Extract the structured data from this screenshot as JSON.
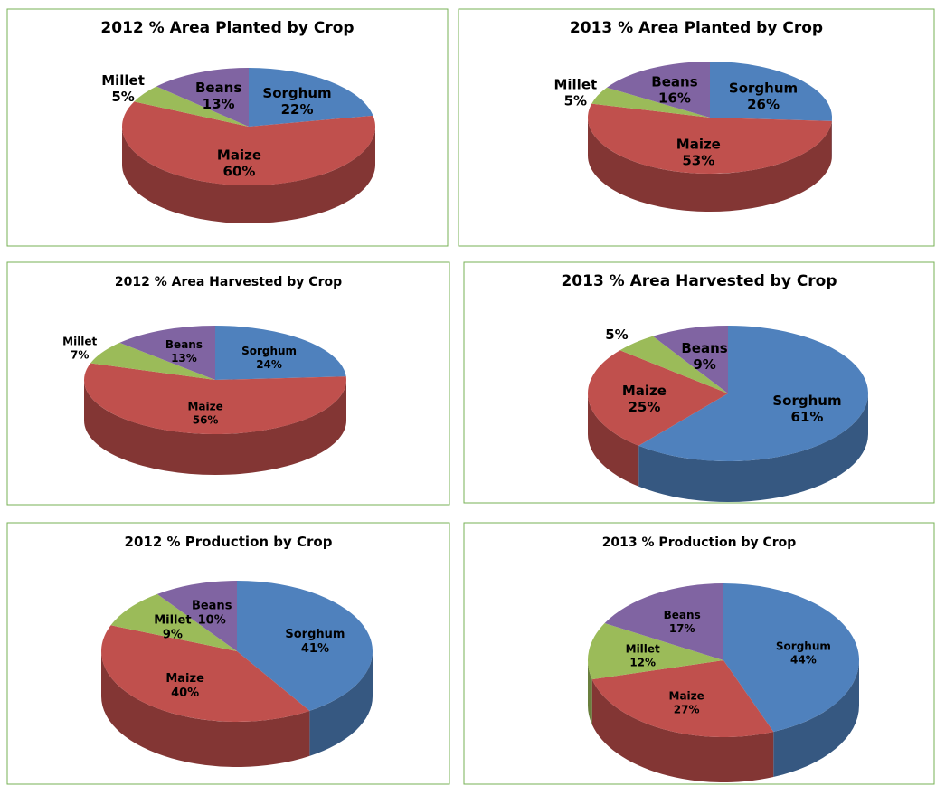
{
  "chart_data": [
    {
      "type": "pie",
      "title": "2012 % Area Planted by Crop",
      "categories": [
        "Sorghum",
        "Maize",
        "Millet",
        "Beans"
      ],
      "values": [
        22,
        60,
        5,
        13
      ],
      "value_labels": [
        "22%",
        "60%",
        "5%",
        "13%"
      ],
      "colors": [
        "#4f81bd",
        "#c0504d",
        "#9bbb59",
        "#8064a2"
      ]
    },
    {
      "type": "pie",
      "title": "2013  % Area Planted  by Crop",
      "categories": [
        "Sorghum",
        "Maize",
        "Millet",
        "Beans"
      ],
      "values": [
        26,
        53,
        5,
        16
      ],
      "value_labels": [
        "26%",
        "53%",
        "5%",
        "16%"
      ],
      "colors": [
        "#4f81bd",
        "#c0504d",
        "#9bbb59",
        "#8064a2"
      ]
    },
    {
      "type": "pie",
      "title": "2012 % Area Harvested by Crop",
      "categories": [
        "Sorghum",
        "Maize",
        "Millet",
        "Beans"
      ],
      "values": [
        24,
        56,
        7,
        13
      ],
      "value_labels": [
        "24%",
        "56%",
        "7%",
        "13%"
      ],
      "colors": [
        "#4f81bd",
        "#c0504d",
        "#9bbb59",
        "#8064a2"
      ]
    },
    {
      "type": "pie",
      "title": "2013  % Area Harvested by Crop",
      "categories": [
        "Sorghum",
        "Maize",
        null,
        "Beans"
      ],
      "values": [
        61,
        25,
        5,
        9
      ],
      "value_labels": [
        "61%",
        "25%",
        "5%",
        "9%"
      ],
      "colors": [
        "#4f81bd",
        "#c0504d",
        "#9bbb59",
        "#8064a2"
      ]
    },
    {
      "type": "pie",
      "title": "2012  % Production by Crop",
      "categories": [
        "Sorghum",
        "Maize",
        "Millet",
        "Beans"
      ],
      "values": [
        41,
        40,
        9,
        10
      ],
      "value_labels": [
        "41%",
        "40%",
        "9%",
        "10%"
      ],
      "colors": [
        "#4f81bd",
        "#c0504d",
        "#9bbb59",
        "#8064a2"
      ]
    },
    {
      "type": "pie",
      "title": "2013 % Production by Crop",
      "categories": [
        "Sorghum",
        "Maize",
        "Millet",
        "Beans"
      ],
      "values": [
        44,
        27,
        12,
        17
      ],
      "value_labels": [
        "44%",
        "27%",
        "12%",
        "17%"
      ],
      "colors": [
        "#4f81bd",
        "#c0504d",
        "#9bbb59",
        "#8064a2"
      ]
    }
  ]
}
